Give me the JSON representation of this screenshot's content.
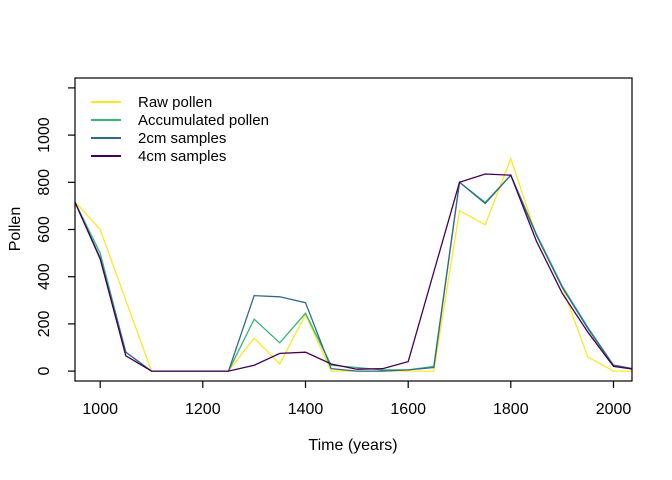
{
  "chart_data": {
    "type": "line",
    "title": "",
    "xlabel": "Time (years)",
    "ylabel": "Pollen",
    "x": [
      950,
      1000,
      1050,
      1100,
      1150,
      1200,
      1250,
      1300,
      1350,
      1400,
      1450,
      1500,
      1550,
      1600,
      1650,
      1700,
      1750,
      1800,
      1850,
      1900,
      1950,
      2000,
      2050
    ],
    "series": [
      {
        "name": "Raw pollen",
        "color": "#FDE725",
        "values": [
          720,
          600,
          300,
          0,
          0,
          0,
          0,
          140,
          30,
          240,
          0,
          0,
          0,
          0,
          0,
          680,
          620,
          900,
          575,
          355,
          60,
          0,
          0
        ]
      },
      {
        "name": "Accumulated pollen",
        "color": "#35B779",
        "values": [
          720,
          500,
          80,
          0,
          0,
          0,
          0,
          220,
          120,
          245,
          25,
          15,
          5,
          5,
          20,
          800,
          715,
          830,
          580,
          360,
          185,
          25,
          5
        ]
      },
      {
        "name": "2cm samples",
        "color": "#31688E",
        "values": [
          720,
          480,
          80,
          0,
          0,
          0,
          0,
          320,
          315,
          290,
          10,
          0,
          0,
          5,
          15,
          800,
          710,
          830,
          575,
          355,
          180,
          25,
          5
        ]
      },
      {
        "name": "4cm samples",
        "color": "#440154",
        "values": [
          720,
          475,
          65,
          0,
          0,
          0,
          0,
          25,
          75,
          80,
          30,
          8,
          10,
          40,
          420,
          800,
          835,
          830,
          550,
          330,
          165,
          20,
          5
        ]
      }
    ],
    "x_ticks": [
      1000,
      1200,
      1400,
      1600,
      1800,
      2000
    ],
    "x_tick_labels": [
      "1000",
      "1200",
      "1400",
      "1600",
      "1800",
      "2000"
    ],
    "y_ticks": [
      0,
      200,
      400,
      600,
      800,
      1000,
      1200
    ],
    "y_tick_labels": [
      "0",
      "200",
      "400",
      "600",
      "800",
      "1000",
      ""
    ],
    "xlim": [
      951,
      2036
    ],
    "ylim": [
      -42,
      1242
    ],
    "grid": false,
    "legend_position": "top-left",
    "axis_color": "#000000",
    "background": "#ffffff"
  }
}
